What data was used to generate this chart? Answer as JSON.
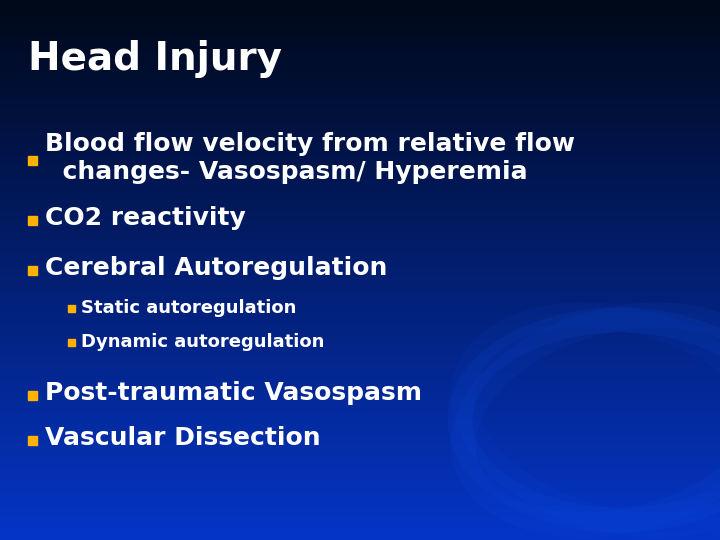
{
  "title": "Head Injury",
  "title_color": "#FFFFFF",
  "title_fontsize": 28,
  "title_weight": "bold",
  "background_top": "#000818",
  "background_bottom": "#0033CC",
  "bullet_color": "#FFB300",
  "text_color": "#FFFFFF",
  "sub_bullet_color": "#FFB300",
  "items": [
    {
      "level": 1,
      "line1": "Blood flow velocity from relative flow",
      "line2": "  changes- Vasospasm/ Hyperemia",
      "fontsize": 18,
      "weight": "bold"
    },
    {
      "level": 1,
      "line1": "CO2 reactivity",
      "line2": null,
      "fontsize": 18,
      "weight": "bold"
    },
    {
      "level": 1,
      "line1": "Cerebral Autoregulation",
      "line2": null,
      "fontsize": 18,
      "weight": "bold"
    },
    {
      "level": 2,
      "line1": "Static autoregulation",
      "line2": null,
      "fontsize": 13,
      "weight": "bold"
    },
    {
      "level": 2,
      "line1": "Dynamic autoregulation",
      "line2": null,
      "fontsize": 13,
      "weight": "bold"
    },
    {
      "level": 1,
      "line1": "Post-traumatic Vasospasm",
      "line2": null,
      "fontsize": 18,
      "weight": "bold"
    },
    {
      "level": 1,
      "line1": "Vascular Dissection",
      "line2": null,
      "fontsize": 18,
      "weight": "bold"
    }
  ]
}
